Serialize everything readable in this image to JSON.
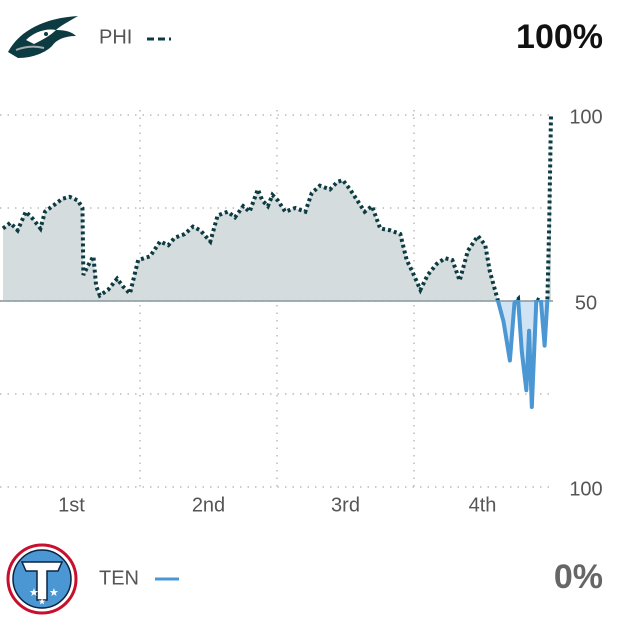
{
  "header": {
    "probability": "100%"
  },
  "footer": {
    "team": "TEN",
    "color": "#4a97d4",
    "probability": "0%"
  },
  "chart_data": {
    "type": "line",
    "categories": [
      "1st",
      "2nd",
      "3rd",
      "4th"
    ],
    "x": [
      0,
      0.8,
      1.6,
      2.5,
      3.3,
      4.1,
      4.6,
      5.7,
      6.5,
      7.3,
      8.2,
      8.7,
      8.8,
      9.3,
      9.9,
      10.2,
      10.6,
      11.5,
      12.5,
      13.1,
      13.9,
      14.8,
      16.1,
      17.2,
      18.1,
      18.8,
      19.9,
      20.8,
      21.6,
      22.7,
      23.5,
      24.6,
      25.4,
      26.3,
      27.0,
      27.9,
      28.4,
      29.0,
      29.5,
      30.1,
      30.9,
      32.0,
      33.1,
      33.8,
      34.7,
      35.8,
      36.6,
      37.2,
      38.0,
      38.8,
      39.6,
      40.4,
      41.3,
      42.4,
      43.5,
      44.2,
      44.8,
      45.7,
      46.5,
      47.5,
      48.4,
      49.2,
      50.0,
      50.9,
      52.0,
      52.8,
      53.3,
      54.2,
      54.8,
      55.5,
      56.0,
      56.4,
      56.8,
      57.3,
      57.6,
      57.9,
      58.4,
      58.9,
      59.3,
      59.6,
      59.8,
      60.0
    ],
    "series": [
      {
        "name": "PHI",
        "color": "#0d3b42",
        "values": [
          69.5,
          71,
          69,
          74,
          72,
          69.5,
          74,
          76,
          77.5,
          78,
          77,
          75,
          57,
          59.5,
          62,
          54,
          51.5,
          53,
          56,
          54,
          52,
          61,
          62,
          66,
          65,
          67,
          68,
          70,
          69,
          66,
          73,
          74,
          72.5,
          75.5,
          74,
          80,
          77,
          75.5,
          78.5,
          77,
          74,
          75,
          74,
          79,
          81,
          80,
          82,
          82.5,
          80,
          77,
          74,
          75.5,
          69.5,
          69,
          68,
          61,
          58,
          53,
          57,
          60,
          61.5,
          61,
          55.5,
          63.5,
          67.5,
          65,
          58,
          50,
          44.5,
          34,
          49.5,
          50.5,
          36.5,
          26,
          42,
          21.5,
          50.5,
          50,
          38,
          50,
          70,
          100
        ]
      }
    ],
    "xlim": [
      0,
      60
    ],
    "xticks": [
      {
        "value": 15,
        "label": null
      },
      {
        "value": 30,
        "label": null
      },
      {
        "value": 45,
        "label": null
      }
    ],
    "ylim": [
      0,
      100
    ],
    "yticks": [
      {
        "value": 100,
        "label": "100"
      },
      {
        "value": 75,
        "label": null
      },
      {
        "value": 50,
        "label": "50"
      },
      {
        "value": 25,
        "label": null
      },
      {
        "value": 0,
        "label": "100"
      }
    ],
    "baseline": 50,
    "grid": true
  }
}
